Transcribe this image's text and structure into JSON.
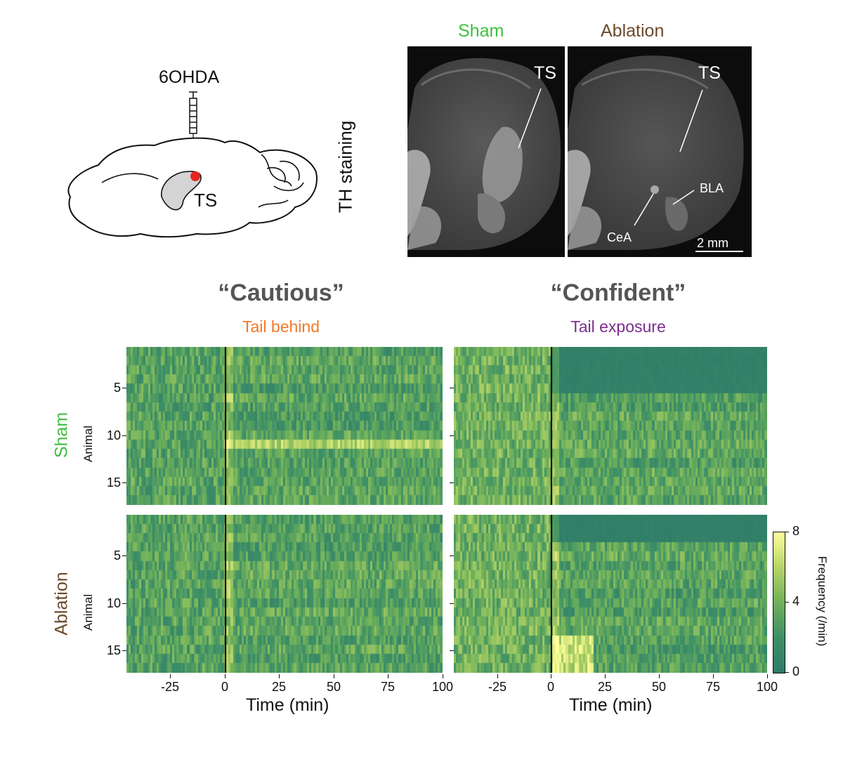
{
  "figure": {
    "schematic": {
      "drug_label": "6OHDA",
      "region_label": "TS",
      "colors": {
        "injection_site": "#e8261f",
        "region_fill": "#d4d4d4"
      }
    },
    "micrographs": {
      "side_label": "TH staining",
      "panels": [
        {
          "title": "Sham",
          "title_color": "#3fbf3f",
          "region_label": "TS"
        },
        {
          "title": "Ablation",
          "title_color": "#6b4a2b",
          "region_label": "TS",
          "annotations": [
            "BLA",
            "CeA"
          ],
          "scalebar_label": "2 mm"
        }
      ]
    },
    "heatmaps": {
      "columns": [
        {
          "title": "“Cautious”",
          "subtitle": "Tail behind",
          "subtitle_color": "#f07a2a"
        },
        {
          "title": "“Confident”",
          "subtitle": "Tail exposure",
          "subtitle_color": "#7b2d8e"
        }
      ],
      "rows": [
        {
          "label": "Sham",
          "color": "#3fbf3f"
        },
        {
          "label": "Ablation",
          "color": "#6b4a2b"
        }
      ],
      "ylabel": "Animal",
      "xlabel": "Time (min)",
      "colorbar": {
        "label": "Frequency (/min)",
        "min": "0",
        "mid": "4",
        "max": "8"
      }
    }
  },
  "chart_data": {
    "type": "heatmap",
    "x": {
      "label": "Time (min)",
      "range": [
        -45,
        100
      ],
      "ticks": [
        "-25",
        "0",
        "25",
        "50",
        "75",
        "100"
      ]
    },
    "y": {
      "label": "Animal",
      "range": [
        1,
        17
      ],
      "ticks": [
        "5",
        "10",
        "15"
      ]
    },
    "colorbar": {
      "label": "Frequency (/min)",
      "range": [
        0,
        8
      ],
      "ticks": [
        "0",
        "4",
        "8"
      ]
    },
    "panels": [
      {
        "row": "Sham",
        "column": "Tail behind",
        "animals": 17
      },
      {
        "row": "Sham",
        "column": "Tail exposure",
        "animals": 17
      },
      {
        "row": "Ablation",
        "column": "Tail behind",
        "animals": 17
      },
      {
        "row": "Ablation",
        "column": "Tail exposure",
        "animals": 17
      }
    ]
  }
}
